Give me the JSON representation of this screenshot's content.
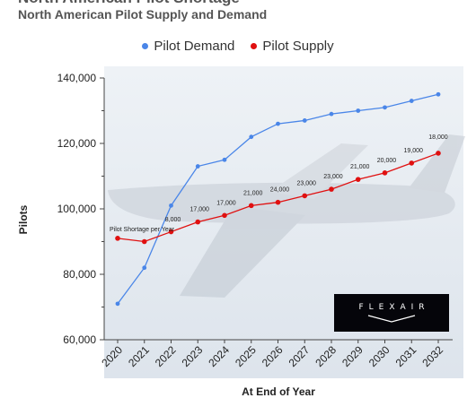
{
  "header": {
    "title_partial": "North American Pilot Shortage",
    "subtitle": "North American Pilot Supply and Demand"
  },
  "logo": {
    "text": "FLEXAIR"
  },
  "colors": {
    "demand": "#4a86e8",
    "supply": "#e01010",
    "background": "#ffffff"
  },
  "chart_data": {
    "type": "line",
    "subtitle": "North American Pilot Supply and Demand",
    "xlabel": "At End of Year",
    "ylabel": "Pilots",
    "categories": [
      "2020",
      "2021",
      "2022",
      "2023",
      "2024",
      "2025",
      "2026",
      "2027",
      "2028",
      "2029",
      "2030",
      "2031",
      "2032"
    ],
    "ylim": [
      60000,
      140000
    ],
    "yticks": [
      60000,
      80000,
      100000,
      120000,
      140000
    ],
    "ytick_labels": [
      "60,000",
      "80,000",
      "100,000",
      "120,000",
      "140,000"
    ],
    "grid": false,
    "legend": "top-center",
    "series": [
      {
        "name": "Pilot Demand",
        "color": "#4a86e8",
        "values": [
          71000,
          82000,
          101000,
          113000,
          115000,
          122000,
          126000,
          127000,
          129000,
          130000,
          131000,
          133000,
          135000
        ]
      },
      {
        "name": "Pilot Supply",
        "color": "#e01010",
        "values": [
          91000,
          90000,
          93000,
          96000,
          98000,
          101000,
          102000,
          104000,
          106000,
          109000,
          111000,
          114000,
          117000
        ]
      }
    ],
    "annotation_title": "Pilot Shortage per Year",
    "annotations": [
      {
        "year": "2022",
        "label": "8,000"
      },
      {
        "year": "2023",
        "label": "17,000"
      },
      {
        "year": "2024",
        "label": "17,000"
      },
      {
        "year": "2025",
        "label": "21,000"
      },
      {
        "year": "2026",
        "label": "24,000"
      },
      {
        "year": "2027",
        "label": "23,000"
      },
      {
        "year": "2028",
        "label": "23,000"
      },
      {
        "year": "2029",
        "label": "21,000"
      },
      {
        "year": "2030",
        "label": "20,000"
      },
      {
        "year": "2031",
        "label": "19,000"
      },
      {
        "year": "2032",
        "label": "18,000"
      }
    ]
  }
}
